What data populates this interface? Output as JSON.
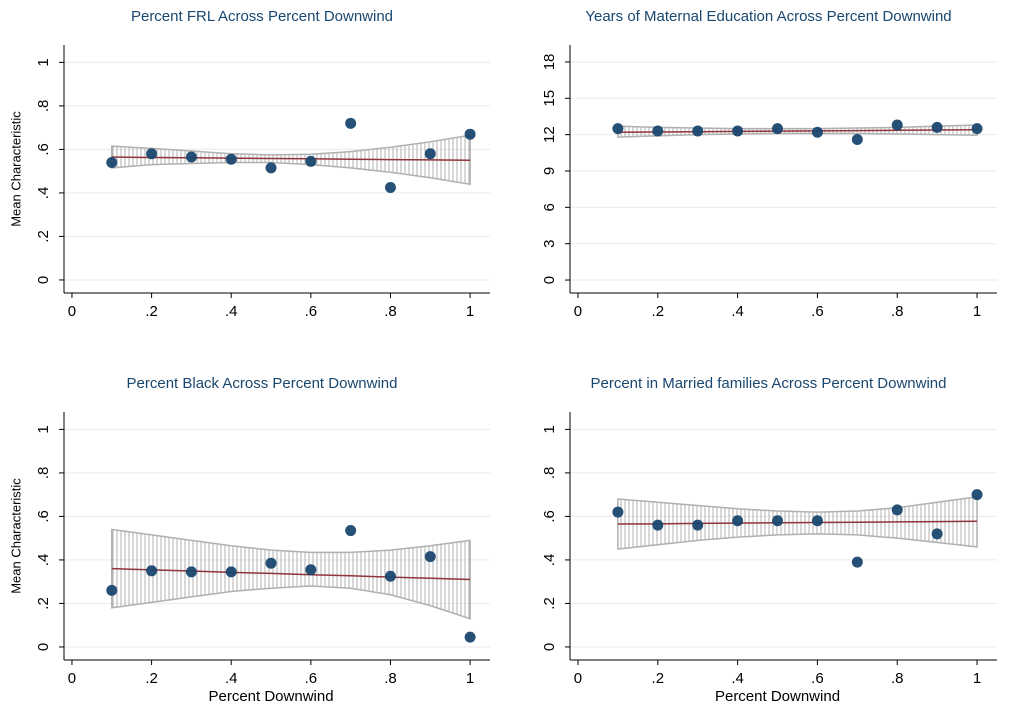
{
  "chart_data": [
    {
      "type": "scatter",
      "title": "Percent FRL Across Percent Downwind",
      "ylabel": "Mean Characteristic",
      "x": [
        0.1,
        0.2,
        0.3,
        0.4,
        0.5,
        0.6,
        0.7,
        0.8,
        0.9,
        1
      ],
      "values": [
        0.54,
        0.58,
        0.565,
        0.555,
        0.515,
        0.545,
        0.72,
        0.425,
        0.58,
        0.67
      ],
      "fit": [
        0.565,
        0.563,
        0.562,
        0.56,
        0.558,
        0.557,
        0.555,
        0.553,
        0.552,
        0.55
      ],
      "ci_upper": [
        0.615,
        0.605,
        0.593,
        0.58,
        0.575,
        0.578,
        0.59,
        0.61,
        0.635,
        0.665
      ],
      "ci_lower": [
        0.515,
        0.53,
        0.535,
        0.54,
        0.54,
        0.53,
        0.515,
        0.495,
        0.47,
        0.44
      ],
      "color": "#1a476f",
      "fit_color": "#90353b",
      "ci_color": "#b0b0b0",
      "xlim": [
        -0.02,
        1.05
      ],
      "ylim": [
        -0.06,
        1.08
      ],
      "xticks": [
        0,
        {
          "value": 0.2,
          "label": ".2"
        },
        {
          "value": 0.4,
          "label": ".4"
        },
        {
          "value": 0.6,
          "label": ".6"
        },
        {
          "value": 0.8,
          "label": ".8"
        },
        1
      ],
      "yticks": [
        0,
        {
          "value": 0.2,
          "label": ".2"
        },
        {
          "value": 0.4,
          "label": ".4"
        },
        {
          "value": 0.6,
          "label": ".6"
        },
        {
          "value": 0.8,
          "label": ".8"
        },
        1
      ],
      "grid": true
    },
    {
      "type": "scatter",
      "title": "Years of Maternal Education Across Percent Downwind",
      "x": [
        0.1,
        0.2,
        0.3,
        0.4,
        0.5,
        0.6,
        0.7,
        0.8,
        0.9,
        1
      ],
      "values": [
        12.5,
        12.3,
        12.3,
        12.3,
        12.5,
        12.2,
        11.6,
        12.8,
        12.6,
        12.5
      ],
      "fit": [
        12.2,
        12.22,
        12.24,
        12.27,
        12.29,
        12.31,
        12.33,
        12.36,
        12.38,
        12.4
      ],
      "ci_upper": [
        12.7,
        12.6,
        12.55,
        12.5,
        12.5,
        12.5,
        12.55,
        12.6,
        12.7,
        12.8
      ],
      "ci_lower": [
        11.8,
        11.9,
        12.0,
        12.05,
        12.1,
        12.1,
        12.1,
        12.05,
        12.0,
        11.95
      ],
      "color": "#1a476f",
      "fit_color": "#90353b",
      "ci_color": "#b0b0b0",
      "xlim": [
        -0.02,
        1.05
      ],
      "ylim": [
        -1.07,
        19.4
      ],
      "xticks": [
        0,
        {
          "value": 0.2,
          "label": ".2"
        },
        {
          "value": 0.4,
          "label": ".4"
        },
        {
          "value": 0.6,
          "label": ".6"
        },
        {
          "value": 0.8,
          "label": ".8"
        },
        1
      ],
      "yticks": [
        0,
        3,
        6,
        9,
        12,
        15,
        18
      ],
      "grid": true
    },
    {
      "type": "scatter",
      "title": "Percent Black Across Percent Downwind",
      "ylabel": "Mean Characteristic",
      "xlabel": "Percent Downwind",
      "x": [
        0.1,
        0.2,
        0.3,
        0.4,
        0.5,
        0.6,
        0.7,
        0.8,
        0.9,
        1
      ],
      "values": [
        0.26,
        0.35,
        0.345,
        0.345,
        0.385,
        0.355,
        0.535,
        0.325,
        0.415,
        0.045
      ],
      "fit": [
        0.36,
        0.354,
        0.349,
        0.343,
        0.338,
        0.332,
        0.327,
        0.321,
        0.316,
        0.31
      ],
      "ci_upper": [
        0.54,
        0.515,
        0.49,
        0.465,
        0.445,
        0.435,
        0.435,
        0.445,
        0.465,
        0.49
      ],
      "ci_lower": [
        0.18,
        0.205,
        0.23,
        0.255,
        0.27,
        0.28,
        0.27,
        0.24,
        0.19,
        0.13
      ],
      "color": "#1a476f",
      "fit_color": "#90353b",
      "ci_color": "#b0b0b0",
      "xlim": [
        -0.02,
        1.05
      ],
      "ylim": [
        -0.06,
        1.08
      ],
      "xticks": [
        0,
        {
          "value": 0.2,
          "label": ".2"
        },
        {
          "value": 0.4,
          "label": ".4"
        },
        {
          "value": 0.6,
          "label": ".6"
        },
        {
          "value": 0.8,
          "label": ".8"
        },
        1
      ],
      "yticks": [
        0,
        {
          "value": 0.2,
          "label": ".2"
        },
        {
          "value": 0.4,
          "label": ".4"
        },
        {
          "value": 0.6,
          "label": ".6"
        },
        {
          "value": 0.8,
          "label": ".8"
        },
        1
      ],
      "grid": true
    },
    {
      "type": "scatter",
      "title": "Percent in Married families Across Percent Downwind",
      "xlabel": "Percent Downwind",
      "x": [
        0.1,
        0.2,
        0.3,
        0.4,
        0.5,
        0.6,
        0.7,
        0.8,
        0.9,
        1
      ],
      "values": [
        0.62,
        0.56,
        0.56,
        0.58,
        0.58,
        0.58,
        0.39,
        0.63,
        0.52,
        0.7
      ],
      "fit": [
        0.565,
        0.566,
        0.568,
        0.569,
        0.571,
        0.572,
        0.573,
        0.575,
        0.576,
        0.578
      ],
      "ci_upper": [
        0.68,
        0.665,
        0.65,
        0.635,
        0.625,
        0.62,
        0.625,
        0.64,
        0.665,
        0.69
      ],
      "ci_lower": [
        0.45,
        0.47,
        0.49,
        0.505,
        0.515,
        0.52,
        0.515,
        0.5,
        0.48,
        0.46
      ],
      "color": "#1a476f",
      "fit_color": "#90353b",
      "ci_color": "#b0b0b0",
      "xlim": [
        -0.02,
        1.05
      ],
      "ylim": [
        -0.06,
        1.08
      ],
      "xticks": [
        0,
        {
          "value": 0.2,
          "label": ".2"
        },
        {
          "value": 0.4,
          "label": ".4"
        },
        {
          "value": 0.6,
          "label": ".6"
        },
        {
          "value": 0.8,
          "label": ".8"
        },
        1
      ],
      "yticks": [
        0,
        {
          "value": 0.2,
          "label": ".2"
        },
        {
          "value": 0.4,
          "label": ".4"
        },
        {
          "value": 0.6,
          "label": ".6"
        },
        {
          "value": 0.8,
          "label": ".8"
        },
        1
      ],
      "grid": true
    }
  ]
}
